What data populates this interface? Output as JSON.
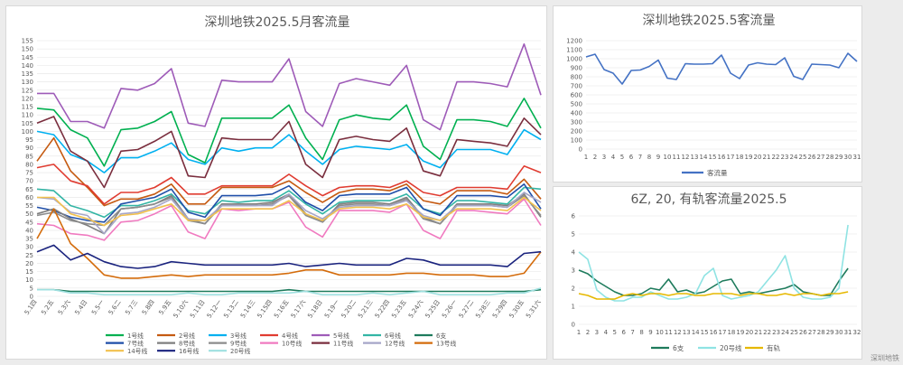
{
  "watermark": "深圳地铁",
  "chart_data": [
    {
      "type": "line",
      "title": "深圳地铁2025.5月客流量",
      "ylim": [
        0,
        155
      ],
      "yticks": [
        0,
        5,
        10,
        15,
        20,
        25,
        30,
        35,
        40,
        45,
        50,
        55,
        60,
        65,
        70,
        75,
        80,
        85,
        90,
        95,
        100,
        105,
        110,
        115,
        120,
        125,
        130,
        135,
        140,
        145,
        150,
        155
      ],
      "grid": true,
      "legend": "bottom",
      "x": [
        "5.1四",
        "5.2五",
        "5.3六",
        "5.4日",
        "5.5一",
        "5.6二",
        "5.7三",
        "5.8四",
        "5.9五",
        "5.10六",
        "5.11日",
        "5.12一",
        "5.13二",
        "5.14三",
        "5.15四",
        "5.16五",
        "5.17六",
        "5.18日",
        "5.19一",
        "5.20二",
        "5.21三",
        "5.22四",
        "5.23五",
        "5.24六",
        "5.25日",
        "5.26一",
        "5.27二",
        "5.28三",
        "5.29四",
        "5.30五",
        "5.31六"
      ],
      "series": [
        {
          "name": "1号线",
          "color": "#00b050",
          "values": [
            114,
            113,
            101,
            96,
            79,
            101,
            102,
            106,
            112,
            86,
            81,
            108,
            108,
            108,
            108,
            116,
            96,
            83,
            107,
            110,
            108,
            107,
            116,
            91,
            83,
            107,
            107,
            106,
            103,
            120,
            102
          ]
        },
        {
          "name": "2号线",
          "color": "#c55a11",
          "values": [
            82,
            96,
            76,
            66,
            55,
            59,
            59,
            62,
            68,
            56,
            56,
            66,
            66,
            66,
            66,
            70,
            63,
            57,
            63,
            65,
            65,
            64,
            68,
            58,
            56,
            64,
            64,
            64,
            62,
            71,
            59
          ]
        },
        {
          "name": "3号线",
          "color": "#00b0f0",
          "values": [
            100,
            98,
            86,
            82,
            75,
            84,
            84,
            88,
            93,
            83,
            80,
            90,
            88,
            90,
            90,
            98,
            88,
            80,
            89,
            91,
            90,
            89,
            92,
            82,
            78,
            89,
            89,
            89,
            86,
            101,
            95
          ]
        },
        {
          "name": "4号线",
          "color": "#e03c31",
          "values": [
            78,
            80,
            70,
            67,
            56,
            63,
            63,
            66,
            72,
            62,
            62,
            67,
            67,
            67,
            67,
            74,
            67,
            61,
            66,
            67,
            67,
            66,
            70,
            63,
            61,
            66,
            66,
            66,
            65,
            79,
            75
          ]
        },
        {
          "name": "5号线",
          "color": "#9e5bb8",
          "values": [
            123,
            123,
            106,
            106,
            102,
            126,
            125,
            129,
            138,
            105,
            103,
            131,
            130,
            130,
            130,
            144,
            112,
            103,
            129,
            132,
            130,
            128,
            140,
            107,
            101,
            130,
            130,
            129,
            127,
            153,
            122
          ]
        },
        {
          "name": "6号线",
          "color": "#33b5a5",
          "values": [
            65,
            64,
            55,
            52,
            48,
            55,
            55,
            58,
            62,
            52,
            50,
            58,
            57,
            58,
            58,
            64,
            56,
            50,
            57,
            58,
            58,
            58,
            62,
            53,
            50,
            58,
            58,
            57,
            56,
            66,
            65
          ]
        },
        {
          "name": "6支",
          "color": "#1e7b5c",
          "values": [
            4,
            4,
            3,
            3,
            3,
            3,
            3,
            3,
            3,
            3,
            3,
            3,
            3,
            3,
            3,
            4,
            3,
            3,
            3,
            3,
            3,
            3,
            3,
            3,
            3,
            3,
            3,
            3,
            3,
            3,
            4
          ]
        },
        {
          "name": "7号线",
          "color": "#1f4ea8",
          "values": [
            54,
            52,
            48,
            46,
            45,
            56,
            58,
            60,
            65,
            51,
            48,
            61,
            61,
            61,
            62,
            67,
            57,
            52,
            61,
            62,
            62,
            62,
            66,
            53,
            49,
            61,
            61,
            61,
            60,
            68,
            53
          ]
        },
        {
          "name": "8号线",
          "color": "#7f7f7f",
          "values": [
            50,
            53,
            47,
            43,
            38,
            53,
            54,
            56,
            61,
            47,
            44,
            56,
            56,
            56,
            57,
            62,
            50,
            45,
            56,
            57,
            57,
            56,
            60,
            48,
            44,
            56,
            56,
            56,
            55,
            62,
            48
          ]
        },
        {
          "name": "9号线",
          "color": "#8c8c8c",
          "values": [
            49,
            51,
            46,
            44,
            43,
            53,
            54,
            56,
            60,
            46,
            44,
            55,
            55,
            55,
            56,
            61,
            49,
            45,
            55,
            56,
            56,
            55,
            59,
            47,
            44,
            55,
            55,
            55,
            54,
            61,
            49
          ]
        },
        {
          "name": "10号线",
          "color": "#f07ac0",
          "values": [
            44,
            43,
            38,
            37,
            34,
            45,
            46,
            50,
            55,
            39,
            35,
            53,
            52,
            53,
            53,
            57,
            42,
            36,
            52,
            52,
            52,
            51,
            56,
            40,
            35,
            52,
            52,
            51,
            50,
            59,
            43
          ]
        },
        {
          "name": "11号线",
          "color": "#7a2e3e",
          "values": [
            105,
            109,
            88,
            82,
            66,
            88,
            89,
            94,
            100,
            73,
            72,
            96,
            95,
            95,
            95,
            106,
            80,
            72,
            95,
            97,
            95,
            94,
            102,
            76,
            73,
            95,
            94,
            93,
            91,
            108,
            98
          ]
        },
        {
          "name": "12号线",
          "color": "#a6a6c8",
          "values": [
            60,
            59,
            51,
            49,
            38,
            50,
            51,
            54,
            59,
            47,
            46,
            55,
            55,
            55,
            55,
            62,
            52,
            47,
            54,
            55,
            55,
            55,
            58,
            49,
            46,
            55,
            55,
            55,
            54,
            63,
            57
          ]
        },
        {
          "name": "13号线",
          "color": "#d46c0c",
          "values": [
            35,
            53,
            32,
            23,
            13,
            11,
            11,
            12,
            13,
            12,
            13,
            13,
            13,
            13,
            13,
            14,
            16,
            16,
            13,
            13,
            13,
            13,
            14,
            14,
            13,
            13,
            13,
            12,
            12,
            14,
            27
          ]
        },
        {
          "name": "14号线",
          "color": "#f2c14e",
          "values": [
            60,
            60,
            50,
            47,
            43,
            49,
            50,
            53,
            56,
            46,
            46,
            53,
            53,
            53,
            53,
            58,
            50,
            46,
            53,
            54,
            54,
            53,
            56,
            48,
            46,
            53,
            53,
            53,
            52,
            60,
            52
          ]
        },
        {
          "name": "16号线",
          "color": "#1a237e",
          "values": [
            27,
            31,
            22,
            26,
            21,
            18,
            17,
            18,
            21,
            20,
            19,
            19,
            19,
            19,
            19,
            20,
            18,
            19,
            20,
            19,
            19,
            19,
            23,
            22,
            19,
            19,
            19,
            19,
            18,
            26,
            27
          ]
        },
        {
          "name": "20号线",
          "color": "#9fe0e0",
          "values": [
            4,
            4,
            2,
            2,
            1,
            1,
            1,
            1,
            1,
            2,
            1,
            1,
            2,
            2,
            2,
            2,
            3,
            1,
            1,
            1,
            2,
            1,
            2,
            3,
            1,
            1,
            1,
            1,
            2,
            2,
            5
          ]
        }
      ]
    },
    {
      "type": "line",
      "title": "深圳地铁2025.5客流量",
      "ylim": [
        0,
        1200
      ],
      "yticks": [
        0,
        100,
        200,
        300,
        400,
        500,
        600,
        700,
        800,
        900,
        1000,
        1100,
        1200
      ],
      "grid": true,
      "legend": "bottom",
      "x": [
        1,
        2,
        3,
        4,
        5,
        6,
        7,
        8,
        9,
        10,
        11,
        12,
        13,
        14,
        15,
        16,
        17,
        18,
        19,
        20,
        21,
        22,
        23,
        24,
        25,
        26,
        27,
        28,
        29,
        30,
        31
      ],
      "series": [
        {
          "name": "客流量",
          "color": "#4472c4",
          "values": [
            1020,
            1050,
            880,
            840,
            720,
            870,
            875,
            915,
            985,
            785,
            770,
            945,
            940,
            940,
            945,
            1040,
            840,
            780,
            930,
            955,
            940,
            935,
            1010,
            805,
            770,
            940,
            935,
            930,
            900,
            1060,
            970
          ]
        }
      ]
    },
    {
      "type": "line",
      "title": "6Z, 20, 有轨客流量2025.5",
      "ylim": [
        0,
        6
      ],
      "yticks": [
        0,
        1,
        2,
        3,
        4,
        5,
        6
      ],
      "grid": true,
      "legend": "bottom",
      "x": [
        1,
        2,
        3,
        4,
        5,
        6,
        7,
        8,
        9,
        10,
        11,
        12,
        13,
        14,
        15,
        16,
        17,
        18,
        19,
        20,
        21,
        22,
        23,
        24,
        25,
        26,
        27,
        28,
        29,
        30,
        31,
        32
      ],
      "series": [
        {
          "name": "6支",
          "color": "#1e7b5c",
          "values": [
            3.0,
            2.8,
            2.4,
            2.1,
            1.8,
            1.6,
            1.6,
            1.7,
            2.0,
            1.9,
            2.5,
            1.8,
            1.9,
            1.7,
            1.8,
            2.1,
            2.4,
            2.5,
            1.7,
            1.8,
            1.7,
            1.8,
            1.9,
            2.0,
            2.2,
            1.8,
            1.7,
            1.6,
            1.6,
            2.4,
            3.1,
            null
          ]
        },
        {
          "name": "20号线",
          "color": "#8fe3e3",
          "values": [
            4.0,
            3.6,
            1.9,
            1.5,
            1.3,
            1.3,
            1.5,
            1.5,
            1.8,
            1.6,
            1.4,
            1.4,
            1.5,
            1.7,
            2.7,
            3.1,
            1.6,
            1.4,
            1.5,
            1.6,
            1.8,
            2.4,
            3.0,
            3.8,
            2.0,
            1.5,
            1.4,
            1.4,
            1.5,
            2.0,
            5.5,
            null
          ]
        },
        {
          "name": "有轨",
          "color": "#e6b800",
          "values": [
            1.7,
            1.6,
            1.4,
            1.4,
            1.4,
            1.6,
            1.7,
            1.6,
            1.7,
            1.7,
            1.6,
            1.7,
            1.7,
            1.6,
            1.6,
            1.7,
            1.7,
            1.7,
            1.6,
            1.7,
            1.7,
            1.6,
            1.6,
            1.7,
            1.6,
            1.7,
            1.7,
            1.6,
            1.7,
            1.7,
            1.8,
            null
          ]
        }
      ]
    }
  ]
}
